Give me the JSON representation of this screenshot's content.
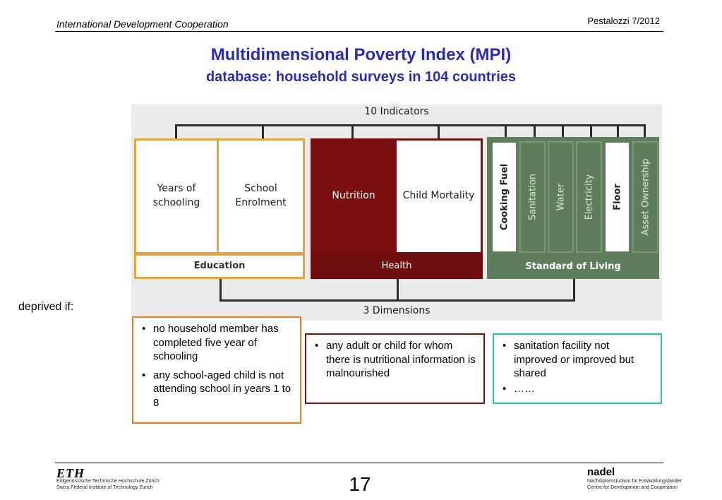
{
  "header": {
    "left_text": "International Development Cooperation",
    "right_text": "Pestalozzi 7/2012"
  },
  "title": "Multidimensional Poverty Index (MPI)",
  "subtitle": "database: household surveys in 104 countries",
  "diagram": {
    "top_label": "10 Indicators",
    "bottom_label": "3 Dimensions",
    "dimensions": [
      {
        "name": "Education",
        "color": "#e8a23a",
        "indicators": [
          "Years of schooling",
          "School Enrolment"
        ]
      },
      {
        "name": "Health",
        "color": "#7a0f0f",
        "indicators": [
          "Nutrition",
          "Child Mortality"
        ]
      },
      {
        "name": "Standard of Living",
        "color": "#5e7d5a",
        "indicators": [
          "Cooking Fuel",
          "Sanitation",
          "Water",
          "Electricity",
          "Floor",
          "Asset Ownership"
        ]
      }
    ]
  },
  "deprived_label": "deprived if:",
  "criteria": {
    "education": [
      "no household member has completed five year of schooling",
      "any school-aged child is not attending school in years 1 to 8"
    ],
    "health": [
      "any adult or child for whom there is nutritional information is malnourished"
    ],
    "standard_of_living": [
      "sanitation facility not improved or improved but shared",
      "……"
    ]
  },
  "footer": {
    "eth_logo": "ETH",
    "eth_line1": "Eidgenössische Technische Hochschule Zürich",
    "eth_line2": "Swiss Federal Institute of Technology Zurich",
    "page_number": "17",
    "nadel_logo": "nadel",
    "nadel_line1": "Nachdiplomstudium für Entwicklungsländer",
    "nadel_line2": "Centre for Development and Cooperation"
  }
}
